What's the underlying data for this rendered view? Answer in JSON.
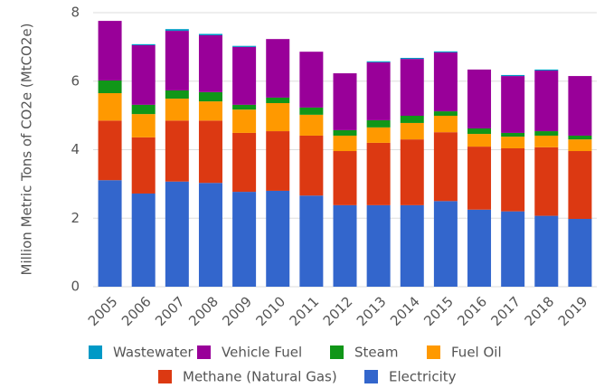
{
  "chart_data": {
    "type": "stacked_bar",
    "y_label": "Million Metric Tons of CO2e (MtCO2e)",
    "categories": [
      "2005",
      "2006",
      "2007",
      "2008",
      "2009",
      "2010",
      "2011",
      "2012",
      "2013",
      "2014",
      "2015",
      "2016",
      "2017",
      "2018",
      "2019"
    ],
    "series": [
      {
        "name": "Wastewater",
        "color": "#0099c6",
        "values": [
          0,
          0.03,
          0.05,
          0.04,
          0.03,
          0,
          0,
          0,
          0.03,
          0.03,
          0.03,
          0,
          0.03,
          0.03,
          0
        ]
      },
      {
        "name": "Vehicle Fuel",
        "color": "#990099",
        "values": [
          1.74,
          1.74,
          1.74,
          1.66,
          1.69,
          1.71,
          1.63,
          1.66,
          1.69,
          1.66,
          1.72,
          1.72,
          1.66,
          1.77,
          1.74
        ]
      },
      {
        "name": "Steam",
        "color": "#109618",
        "values": [
          0.37,
          0.27,
          0.24,
          0.27,
          0.14,
          0.16,
          0.21,
          0.16,
          0.21,
          0.21,
          0.13,
          0.16,
          0.11,
          0.13,
          0.11
        ]
      },
      {
        "name": "Fuel Oil",
        "color": "#ff9900",
        "values": [
          0.8,
          0.68,
          0.64,
          0.56,
          0.68,
          0.82,
          0.61,
          0.45,
          0.45,
          0.48,
          0.48,
          0.37,
          0.34,
          0.34,
          0.34
        ]
      },
      {
        "name": "Methane (Natural Gas)",
        "color": "#dc3912",
        "values": [
          1.74,
          1.64,
          1.78,
          1.82,
          1.72,
          1.74,
          1.75,
          1.58,
          1.82,
          1.92,
          2.01,
          1.84,
          1.84,
          2.0,
          1.98
        ]
      },
      {
        "name": "Electricity",
        "color": "#3366cc",
        "values": [
          3.11,
          2.72,
          3.07,
          3.03,
          2.77,
          2.8,
          2.66,
          2.38,
          2.38,
          2.38,
          2.5,
          2.25,
          2.2,
          2.07,
          1.98
        ]
      }
    ],
    "ylim": [
      0,
      8
    ],
    "yticks": [
      0,
      2,
      4,
      6,
      8
    ],
    "grid": true,
    "legend": "bottom"
  }
}
